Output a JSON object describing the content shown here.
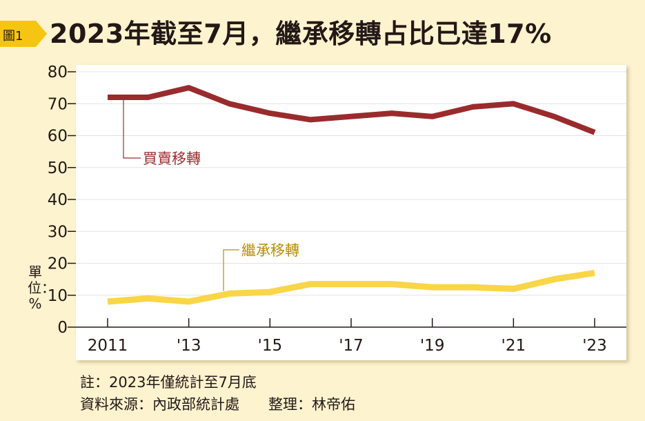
{
  "figure_tag": "圖1",
  "title": "2023年截至7月，繼承移轉占比已達17%",
  "unit_label": "單位：%",
  "notes": {
    "line1": "註：2023年僅統計至7月底",
    "line2": "資料來源：內政部統計處　　整理：林帝佑"
  },
  "colors": {
    "sale": "#9a2b2d",
    "inherit": "#f9d548",
    "inherit_label": "#b68f00",
    "grid": "#e3e3e3",
    "background": "#fdf3cf",
    "tag": "#f6c511"
  },
  "chart_data": {
    "type": "line",
    "x": [
      2011,
      2012,
      2013,
      2014,
      2015,
      2016,
      2017,
      2018,
      2019,
      2020,
      2021,
      2022,
      2023
    ],
    "x_tick_values": [
      2011,
      2013,
      2015,
      2017,
      2019,
      2021,
      2023
    ],
    "x_tick_labels": [
      "2011",
      "'13",
      "'15",
      "'17",
      "'19",
      "'21",
      "'23"
    ],
    "ylim": [
      0,
      80
    ],
    "y_ticks": [
      0,
      10,
      20,
      30,
      40,
      50,
      60,
      70,
      80
    ],
    "grid": true,
    "series": [
      {
        "name": "買賣移轉",
        "values": [
          72,
          72,
          75,
          70,
          67,
          65,
          66,
          67,
          66,
          69,
          70,
          66,
          61
        ]
      },
      {
        "name": "繼承移轉",
        "values": [
          8,
          9,
          8,
          10.5,
          11,
          13.5,
          13.5,
          13.5,
          12.5,
          12.5,
          12,
          15,
          17
        ]
      }
    ]
  }
}
